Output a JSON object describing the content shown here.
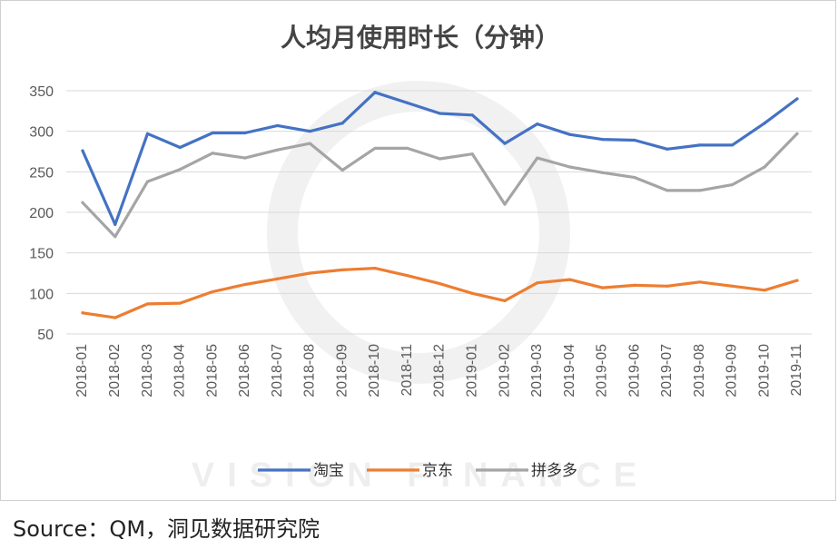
{
  "chart_data": {
    "type": "line",
    "title": "人均月使用时长（分钟）",
    "xlabel": "",
    "ylabel": "",
    "ylim": [
      50,
      350
    ],
    "yticks": [
      50,
      100,
      150,
      200,
      250,
      300,
      350
    ],
    "grid": true,
    "legend_position": "bottom",
    "categories": [
      "2018-01",
      "2018-02",
      "2018-03",
      "2018-04",
      "2018-05",
      "2018-06",
      "2018-07",
      "2018-08",
      "2018-09",
      "2018-10",
      "2018-11",
      "2018-12",
      "2019-01",
      "2019-02",
      "2019-03",
      "2019-04",
      "2019-05",
      "2019-06",
      "2019-07",
      "2019-08",
      "2019-09",
      "2019-10",
      "2019-11"
    ],
    "series": [
      {
        "name": "淘宝",
        "color": "#4472C4",
        "values": [
          276,
          185,
          297,
          280,
          298,
          298,
          307,
          300,
          310,
          348,
          335,
          322,
          320,
          285,
          309,
          296,
          290,
          289,
          278,
          283,
          283,
          310,
          340
        ]
      },
      {
        "name": "京东",
        "color": "#ED7D31",
        "values": [
          76,
          70,
          87,
          88,
          102,
          111,
          118,
          125,
          129,
          131,
          122,
          112,
          100,
          91,
          113,
          117,
          107,
          110,
          109,
          114,
          109,
          104,
          116
        ]
      },
      {
        "name": "拼多多",
        "color": "#A5A5A5",
        "values": [
          212,
          170,
          238,
          253,
          273,
          267,
          277,
          285,
          252,
          279,
          279,
          266,
          272,
          210,
          267,
          256,
          249,
          243,
          227,
          227,
          234,
          256,
          297
        ]
      }
    ]
  },
  "watermark": {
    "lines": [
      "VISION FINANCE"
    ],
    "color": "#eeeeee"
  },
  "footer": {
    "source": "Source：QM，洞见数据研究院"
  }
}
